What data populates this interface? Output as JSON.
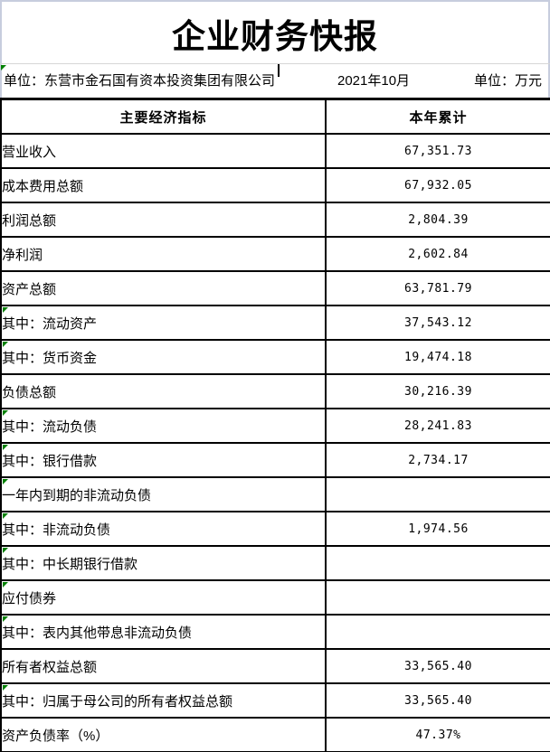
{
  "doc": {
    "title": "企业财务快报",
    "info": {
      "company": "单位：东营市金石国有资本投资集团有限公司",
      "period": "2021年10月",
      "currency_unit": "单位：万元"
    }
  },
  "colors": {
    "flag_green": "#008000",
    "window_frame": "#c7cdde",
    "table_border": "#000000",
    "hairline": "#d6d6d6"
  },
  "table": {
    "headers": {
      "indicator": "主要经济指标",
      "value": "本年累计"
    },
    "rows": [
      {
        "label": "营业收入",
        "value": "67,351.73",
        "indent": 0,
        "flag": false
      },
      {
        "label": "成本费用总额",
        "value": "67,932.05",
        "indent": 0,
        "flag": false
      },
      {
        "label": "利润总额",
        "value": "2,804.39",
        "indent": 0,
        "flag": false
      },
      {
        "label": "净利润",
        "value": "2,602.84",
        "indent": 0,
        "flag": false
      },
      {
        "label": "资产总额",
        "value": "63,781.79",
        "indent": 0,
        "flag": false
      },
      {
        "label": "其中：流动资产",
        "value": "37,543.12",
        "indent": 1,
        "flag": true
      },
      {
        "label": "其中：货币资金",
        "value": "19,474.18",
        "indent": 2,
        "flag": true
      },
      {
        "label": "负债总额",
        "value": "30,216.39",
        "indent": 0,
        "flag": false
      },
      {
        "label": "其中：流动负债",
        "value": "28,241.83",
        "indent": 1,
        "flag": true
      },
      {
        "label": "其中：银行借款",
        "value": "2,734.17",
        "indent": 2,
        "flag": true
      },
      {
        "label": "一年内到期的非流动负债",
        "value": "",
        "indent": 3,
        "flag": true
      },
      {
        "label": "其中：非流动负债",
        "value": "1,974.56",
        "indent": 1,
        "flag": true
      },
      {
        "label": "其中：中长期银行借款",
        "value": "",
        "indent": 2,
        "flag": true
      },
      {
        "label": "应付债券",
        "value": "",
        "indent": 3,
        "flag": true
      },
      {
        "label": "其中：表内其他带息非流动负债",
        "value": "",
        "indent": 1,
        "flag": true
      },
      {
        "label": "所有者权益总额",
        "value": "33,565.40",
        "indent": 0,
        "flag": false
      },
      {
        "label": "其中：归属于母公司的所有者权益总额",
        "value": "33,565.40",
        "indent": 1,
        "flag": true
      },
      {
        "label": "资产负债率（%）",
        "value": "47.37%",
        "indent": 0,
        "flag": false
      }
    ]
  }
}
